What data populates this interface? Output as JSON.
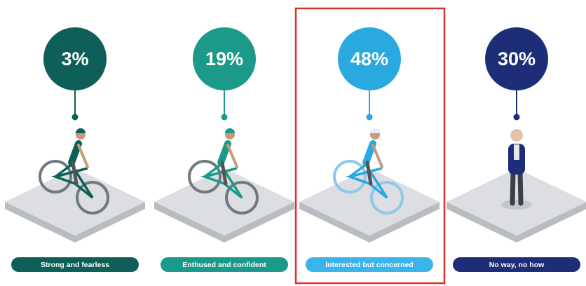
{
  "panels": [
    {
      "value": "3%",
      "label": "Strong and fearless"
    },
    {
      "value": "19%",
      "label": "Enthused and confident"
    },
    {
      "value": "48%",
      "label": "Interested but concerned"
    },
    {
      "value": "30%",
      "label": "No way, no how"
    }
  ]
}
